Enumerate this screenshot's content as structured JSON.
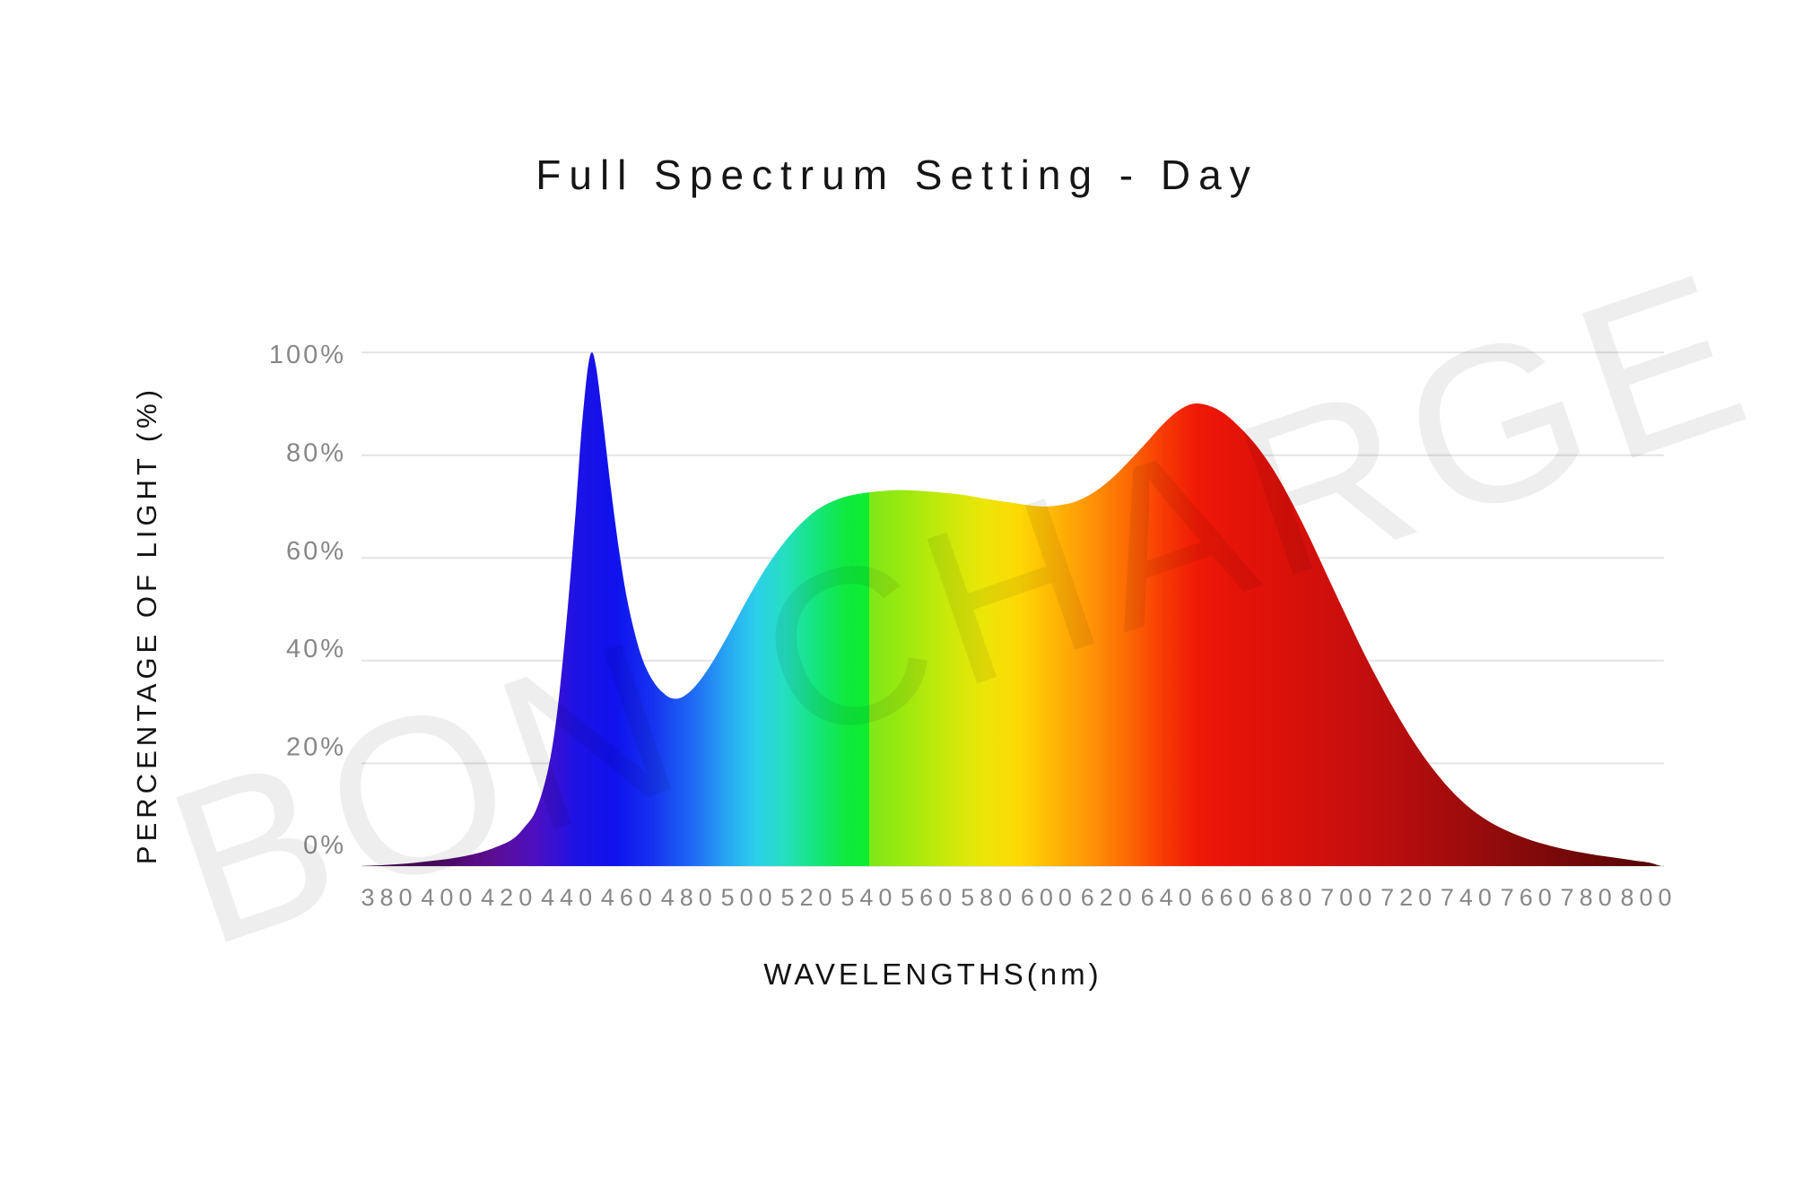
{
  "title": "Full Spectrum Setting - Day",
  "watermark_text": "BON CHARGE",
  "colors": {
    "gridline": "#e4e4e4",
    "tick_label": "#878787",
    "title_text": "#161616",
    "watermark": "rgba(0,0,0,0.068)"
  },
  "chart_data": {
    "type": "area",
    "title": "Full Spectrum Setting - Day",
    "xlabel": "WAVELENGTHS(nm)",
    "ylabel": "PERCENTAGE OF LIGHT (%)",
    "xlim": [
      380,
      800
    ],
    "ylim": [
      0,
      100
    ],
    "x_ticks": [
      380,
      400,
      420,
      440,
      460,
      480,
      500,
      520,
      540,
      560,
      580,
      600,
      620,
      640,
      660,
      680,
      700,
      720,
      740,
      760,
      780,
      800
    ],
    "y_ticks": [
      0,
      20,
      40,
      60,
      80,
      100
    ],
    "y_tick_suffix": "%",
    "grid": "horizontal-only",
    "legend": "none",
    "key_features": {
      "blue_peak": {
        "wavelength_nm": 447,
        "percent": 100
      },
      "cyan_dip": {
        "wavelength_nm": 475,
        "percent": 33
      },
      "green_plateau": {
        "wavelength_nm": 550,
        "percent": 73
      },
      "yellow_saddle": {
        "wavelength_nm": 598,
        "percent": 70
      },
      "red_peak": {
        "wavelength_nm": 648,
        "percent": 90
      },
      "tail_end": {
        "wavelength_nm": 800,
        "percent": 1
      }
    },
    "points": [
      [
        371,
        0
      ],
      [
        378,
        0.2
      ],
      [
        386,
        0.5
      ],
      [
        394,
        1
      ],
      [
        402,
        1.6
      ],
      [
        410,
        2.6
      ],
      [
        416,
        3.8
      ],
      [
        421,
        5.2
      ],
      [
        425,
        7.5
      ],
      [
        429,
        11
      ],
      [
        433,
        19
      ],
      [
        436,
        30
      ],
      [
        439,
        47
      ],
      [
        442,
        68
      ],
      [
        444,
        84
      ],
      [
        446,
        96
      ],
      [
        447.5,
        100
      ],
      [
        449,
        97
      ],
      [
        451,
        88
      ],
      [
        454,
        73
      ],
      [
        457,
        60
      ],
      [
        460,
        50
      ],
      [
        464,
        41
      ],
      [
        468,
        36
      ],
      [
        472,
        33.4
      ],
      [
        475,
        32.6
      ],
      [
        478,
        33
      ],
      [
        482,
        35
      ],
      [
        487,
        39
      ],
      [
        493,
        45
      ],
      [
        499,
        51.5
      ],
      [
        505,
        57.5
      ],
      [
        511,
        62.5
      ],
      [
        517,
        66.5
      ],
      [
        523,
        69.5
      ],
      [
        529,
        71.3
      ],
      [
        535,
        72.3
      ],
      [
        542,
        72.9
      ],
      [
        549,
        73.2
      ],
      [
        556,
        73.1
      ],
      [
        563,
        72.8
      ],
      [
        571,
        72.3
      ],
      [
        579,
        71.5
      ],
      [
        587,
        70.8
      ],
      [
        594,
        70.2
      ],
      [
        599,
        70
      ],
      [
        604,
        70.3
      ],
      [
        609,
        71
      ],
      [
        615,
        72.8
      ],
      [
        621,
        75.5
      ],
      [
        627,
        79
      ],
      [
        633,
        82.8
      ],
      [
        638,
        86
      ],
      [
        643,
        88.6
      ],
      [
        648,
        90
      ],
      [
        653,
        89.7
      ],
      [
        658,
        88.3
      ],
      [
        663,
        85.8
      ],
      [
        669,
        82
      ],
      [
        675,
        77
      ],
      [
        681,
        70.8
      ],
      [
        687,
        63.8
      ],
      [
        693,
        56.3
      ],
      [
        699,
        48.8
      ],
      [
        705,
        41.5
      ],
      [
        711,
        34.8
      ],
      [
        717,
        28.6
      ],
      [
        723,
        23
      ],
      [
        729,
        18.2
      ],
      [
        735,
        14.2
      ],
      [
        741,
        11
      ],
      [
        747,
        8.6
      ],
      [
        753,
        6.8
      ],
      [
        759,
        5.4
      ],
      [
        765,
        4.3
      ],
      [
        771,
        3.4
      ],
      [
        777,
        2.7
      ],
      [
        783,
        2.1
      ],
      [
        789,
        1.6
      ],
      [
        795,
        1.1
      ],
      [
        800,
        0.7
      ],
      [
        803,
        0.2
      ],
      [
        804,
        0
      ]
    ],
    "gradient_stops": [
      [
        370,
        "#41094f"
      ],
      [
        395,
        "#4c0a63"
      ],
      [
        415,
        "#5c0e93"
      ],
      [
        430,
        "#4a10c4"
      ],
      [
        442,
        "#1d12e4"
      ],
      [
        455,
        "#0f11ed"
      ],
      [
        468,
        "#1633f0"
      ],
      [
        480,
        "#1e64f5"
      ],
      [
        492,
        "#27a3f2"
      ],
      [
        502,
        "#2ccfec"
      ],
      [
        512,
        "#25dfc0"
      ],
      [
        522,
        "#15e57e"
      ],
      [
        532,
        "#0fe93f"
      ],
      [
        540,
        "#0ded2f"
      ],
      [
        540,
        "#7fe818"
      ],
      [
        552,
        "#9ce90f"
      ],
      [
        565,
        "#c6e90a"
      ],
      [
        578,
        "#ece608"
      ],
      [
        590,
        "#fdd805"
      ],
      [
        602,
        "#ffb505"
      ],
      [
        614,
        "#ff9306"
      ],
      [
        626,
        "#fd6a04"
      ],
      [
        638,
        "#f73a04"
      ],
      [
        650,
        "#ee1806"
      ],
      [
        665,
        "#e31309"
      ],
      [
        680,
        "#d91109"
      ],
      [
        700,
        "#c80f0e"
      ],
      [
        720,
        "#b30d0d"
      ],
      [
        740,
        "#9c0c0c"
      ],
      [
        760,
        "#840a0a"
      ],
      [
        780,
        "#6d0808"
      ],
      [
        802,
        "#540606"
      ]
    ]
  }
}
